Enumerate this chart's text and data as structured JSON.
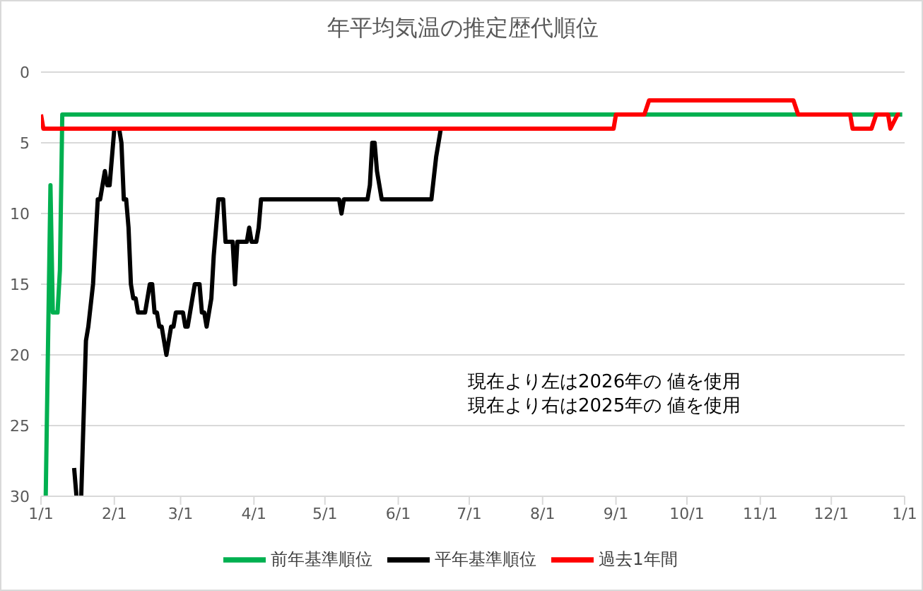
{
  "chart_data": {
    "type": "line",
    "title": "年平均気温の推定歴代順位",
    "series": [
      {
        "name": "平年基準順位",
        "color": "#000000",
        "x": [
          "2026-01-15",
          "2026-01-16",
          "2026-01-17",
          "2026-01-18",
          "2026-01-20",
          "2026-01-21",
          "2026-01-23",
          "2026-01-25",
          "2026-01-26",
          "2026-01-27",
          "2026-01-28",
          "2026-01-29",
          "2026-01-30",
          "2026-02-01",
          "2026-02-02",
          "2026-02-03",
          "2026-02-04",
          "2026-02-05",
          "2026-02-06",
          "2026-02-07",
          "2026-02-08",
          "2026-02-09",
          "2026-02-10",
          "2026-02-11",
          "2026-02-14",
          "2026-02-15",
          "2026-02-16",
          "2026-02-17",
          "2026-02-18",
          "2026-02-19",
          "2026-02-20",
          "2026-02-21",
          "2026-02-22",
          "2026-02-23",
          "2026-02-24",
          "2026-02-25",
          "2026-02-26",
          "2026-02-27",
          "2026-03-02",
          "2026-03-03",
          "2026-03-04",
          "2026-03-05",
          "2026-03-06",
          "2026-03-07",
          "2026-03-09",
          "2026-03-10",
          "2026-03-11",
          "2026-03-12",
          "2026-03-13",
          "2026-03-14",
          "2026-03-15",
          "2026-03-16",
          "2026-03-17",
          "2026-03-19",
          "2026-03-20",
          "2026-03-23",
          "2026-03-24",
          "2026-03-25",
          "2026-03-29",
          "2026-03-30",
          "2026-03-31",
          "2026-04-02",
          "2026-04-03",
          "2026-04-04",
          "2026-05-07",
          "2026-05-08",
          "2026-05-09",
          "2026-05-19",
          "2026-05-20",
          "2026-05-21",
          "2026-05-22",
          "2026-05-23",
          "2026-05-24",
          "2026-05-25",
          "2026-06-15",
          "2026-06-17",
          "2026-06-18",
          "2026-06-19"
        ],
        "values": [
          28,
          30,
          null,
          30,
          19,
          18,
          15,
          9,
          9,
          8,
          7,
          8,
          8,
          4,
          4,
          4,
          5,
          9,
          9,
          11,
          15,
          16,
          16,
          17,
          17,
          16,
          15,
          15,
          17,
          17,
          18,
          18,
          19,
          20,
          19,
          18,
          18,
          17,
          17,
          18,
          18,
          17,
          16,
          15,
          15,
          17,
          17,
          18,
          17,
          16,
          13,
          11,
          9,
          9,
          12,
          12,
          15,
          12,
          12,
          11,
          12,
          12,
          11,
          9,
          9,
          10,
          9,
          9,
          8,
          5,
          5,
          7,
          8,
          9,
          9,
          6,
          5,
          4
        ]
      },
      {
        "name": "前年基準順位",
        "color": "#00b050",
        "x": [
          "2026-01-03",
          "2026-01-05",
          "2026-01-06",
          "2026-01-08",
          "2026-01-09",
          "2026-01-10",
          "2026-12-31"
        ],
        "values": [
          30,
          8,
          17,
          17,
          14,
          3,
          3
        ]
      },
      {
        "name": "過去1年間",
        "color": "#ff0000",
        "x": [
          "2026-01-01",
          "2026-01-02",
          "2026-08-31",
          "2026-09-01",
          "2026-09-13",
          "2026-09-15",
          "2026-11-15",
          "2026-11-17",
          "2026-12-09",
          "2026-12-10",
          "2026-12-18",
          "2026-12-20",
          "2026-12-25",
          "2026-12-26",
          "2026-12-29",
          "2026-12-30"
        ],
        "values": [
          3,
          4,
          4,
          3,
          3,
          2,
          2,
          3,
          3,
          4,
          4,
          3,
          3,
          4,
          3,
          3
        ]
      }
    ],
    "xlim": [
      "2026-01-01",
      "2027-01-01"
    ],
    "xticks": [
      {
        "value": "2026-01-01",
        "label": "1/1"
      },
      {
        "value": "2026-02-01",
        "label": "2/1"
      },
      {
        "value": "2026-03-01",
        "label": "3/1"
      },
      {
        "value": "2026-04-01",
        "label": "4/1"
      },
      {
        "value": "2026-05-01",
        "label": "5/1"
      },
      {
        "value": "2026-06-01",
        "label": "6/1"
      },
      {
        "value": "2026-07-01",
        "label": "7/1"
      },
      {
        "value": "2026-08-01",
        "label": "8/1"
      },
      {
        "value": "2026-09-01",
        "label": "9/1"
      },
      {
        "value": "2026-10-01",
        "label": "10/1"
      },
      {
        "value": "2026-11-01",
        "label": "11/1"
      },
      {
        "value": "2026-12-01",
        "label": "12/1"
      },
      {
        "value": "2027-01-01",
        "label": "1/1"
      }
    ],
    "ylim": [
      30,
      0
    ],
    "yticks": [
      0,
      5,
      10,
      15,
      20,
      25,
      30
    ],
    "grid": "y",
    "legend": "bottom",
    "marker": "none",
    "line_style": "solid",
    "annotations": [
      "現在より左は2026年の 値を使用",
      "現在より右は2025年の 値を使用"
    ]
  }
}
